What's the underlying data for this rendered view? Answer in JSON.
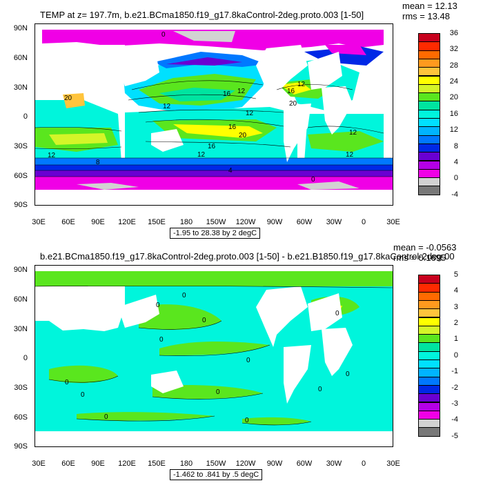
{
  "panels": [
    {
      "title": "TEMP at z= 197.7m, b.e21.BCma1850.f19_g17.8kaControl-2deg.proto.003 [1-50]",
      "mean": "mean = 12.13",
      "rms": "rms = 13.48",
      "y_labels": [
        "90N",
        "60N",
        "30N",
        "0",
        "30S",
        "60S",
        "90S"
      ],
      "x_labels": [
        "30E",
        "60E",
        "90E",
        "120E",
        "150E",
        "180",
        "150W",
        "120W",
        "90W",
        "60W",
        "30W",
        "0",
        "30E"
      ],
      "range_label": "-1.95 to 28.38 by 2 degC",
      "colorbar_labels": [
        "36",
        "32",
        "28",
        "24",
        "20",
        "16",
        "12",
        "8",
        "4",
        "0",
        "-4"
      ],
      "colorbar_colors": [
        "#c8001e",
        "#ff2a00",
        "#ff6a00",
        "#ff9a1e",
        "#ffc43c",
        "#ffff00",
        "#d4f528",
        "#5ae61e",
        "#00e4a0",
        "#00f5dc",
        "#00e0ff",
        "#00b4ff",
        "#0078ff",
        "#0028e6",
        "#6a00d2",
        "#b400e6",
        "#f000e6",
        "#d2d2d2",
        "#787878"
      ],
      "contour_labels": [
        "0",
        "16",
        "12",
        "20",
        "12",
        "12",
        "16",
        "20",
        "12",
        "12",
        "16",
        "12",
        "8",
        "4",
        "20",
        "16",
        "12",
        "12",
        "0"
      ]
    },
    {
      "title": "b.e21.BCma1850.f19_g17.8kaControl-2deg.proto.003 [1-50] - b.e21.B1850.f19_g17.8kaControl-2deg.00",
      "mean": "mean = -0.0563",
      "rms": "rms = 0.1695",
      "y_labels": [
        "90N",
        "60N",
        "30N",
        "0",
        "30S",
        "60S",
        "90S"
      ],
      "x_labels": [
        "30E",
        "60E",
        "90E",
        "120E",
        "150E",
        "180",
        "150W",
        "120W",
        "90W",
        "60W",
        "30W",
        "0",
        "30E"
      ],
      "range_label": "-1.462 to .841 by .5 degC",
      "colorbar_labels": [
        "5",
        "4",
        "3",
        "2",
        "1",
        "0",
        "-1",
        "-2",
        "-3",
        "-4",
        "-5"
      ],
      "colorbar_colors": [
        "#c8001e",
        "#ff2a00",
        "#ff6a00",
        "#ff9a1e",
        "#ffc43c",
        "#ffff00",
        "#d4f528",
        "#5ae61e",
        "#00e4a0",
        "#00f5dc",
        "#00e0ff",
        "#00b4ff",
        "#0078ff",
        "#0028e6",
        "#6a00d2",
        "#b400e6",
        "#f000e6",
        "#d2d2d2",
        "#787878"
      ],
      "contour_labels": [
        "0",
        "0",
        "0",
        "0",
        "0",
        "0",
        "0",
        "0",
        "0",
        "0",
        "0",
        "0",
        "0"
      ]
    }
  ]
}
